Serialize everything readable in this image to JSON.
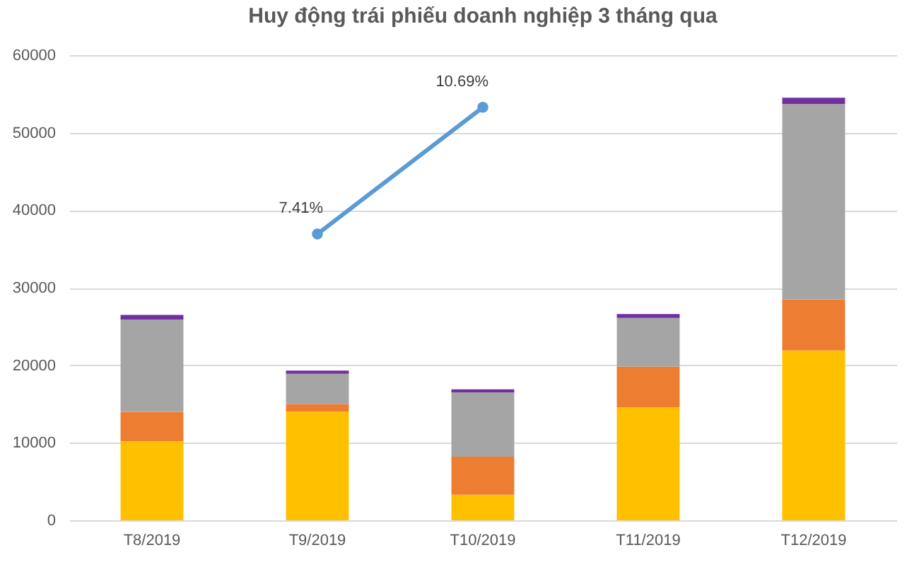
{
  "chart_data": {
    "type": "bar",
    "title": "Huy động trái phiếu doanh nghiệp 3 tháng qua",
    "categories": [
      "T8/2019",
      "T9/2019",
      "T10/2019",
      "T11/2019",
      "T12/2019"
    ],
    "stacked": true,
    "series": [
      {
        "color": "#ffc000",
        "values": [
          10200,
          14000,
          3300,
          14600,
          21900
        ]
      },
      {
        "color": "#ed7d31",
        "values": [
          3800,
          1000,
          4900,
          5200,
          6600
        ]
      },
      {
        "color": "#a5a5a5",
        "values": [
          11900,
          3900,
          8300,
          6300,
          25200
        ]
      },
      {
        "color": "#7030a0",
        "values": [
          600,
          400,
          400,
          500,
          800
        ]
      },
      {
        "type": "line",
        "axis": "y2",
        "color": "#5b9bd5",
        "values": [
          null,
          7.41,
          10.69,
          null,
          null
        ],
        "value_labels": [
          null,
          "7.41%",
          "10.69%",
          null,
          null
        ]
      }
    ],
    "ylim": [
      0,
      60000
    ],
    "yticks": [
      0,
      10000,
      20000,
      30000,
      40000,
      50000,
      60000
    ],
    "y2lim": [
      0,
      12.04
    ],
    "grid": "y",
    "marker": "circle"
  }
}
